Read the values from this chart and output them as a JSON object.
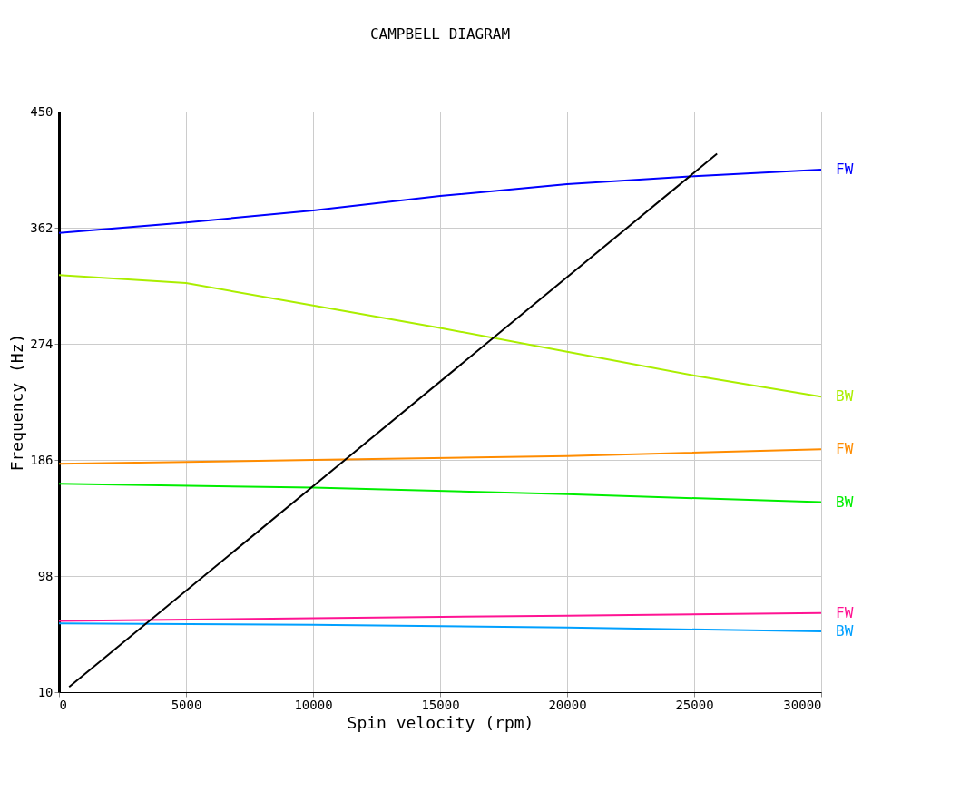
{
  "chart_data": {
    "type": "line",
    "title": "CAMPBELL DIAGRAM",
    "xlabel": "Spin velocity (rpm)",
    "ylabel": "Frequency (Hz)",
    "xlim": [
      0,
      30000
    ],
    "xticks": [
      0,
      5000,
      10000,
      15000,
      20000,
      25000,
      30000
    ],
    "ylim": [
      10,
      450
    ],
    "yticks": [
      10,
      98,
      186,
      274,
      362,
      450
    ],
    "grid": true,
    "legend": false,
    "marker": "none",
    "line_style": "solid",
    "series": [
      {
        "name": "FW",
        "color": "#0000ff",
        "x": [
          0,
          5000,
          10000,
          15000,
          20000,
          25000,
          30000
        ],
        "values": [
          358,
          366,
          375,
          386,
          395,
          401,
          406
        ]
      },
      {
        "name": "BW",
        "color": "#aaee00",
        "x": [
          0,
          5000,
          10000,
          15000,
          20000,
          25000,
          30000
        ],
        "values": [
          326,
          320,
          303,
          286,
          268,
          250,
          234
        ]
      },
      {
        "name": "FW",
        "color": "#ff8c00",
        "x": [
          0,
          10000,
          20000,
          30000
        ],
        "values": [
          183,
          186,
          189,
          194
        ]
      },
      {
        "name": "BW",
        "color": "#00ee00",
        "x": [
          0,
          10000,
          20000,
          30000
        ],
        "values": [
          168,
          165,
          160,
          154
        ]
      },
      {
        "name": "FW",
        "color": "#ff1493",
        "x": [
          0,
          10000,
          20000,
          30000
        ],
        "values": [
          64,
          66,
          68,
          70
        ]
      },
      {
        "name": "BW",
        "color": "#00a0ff",
        "x": [
          0,
          10000,
          20000,
          30000
        ],
        "values": [
          62,
          61,
          59,
          56
        ]
      },
      {
        "color": "#000000",
        "x": [
          400,
          25900
        ],
        "values": [
          14,
          418
        ]
      }
    ]
  }
}
